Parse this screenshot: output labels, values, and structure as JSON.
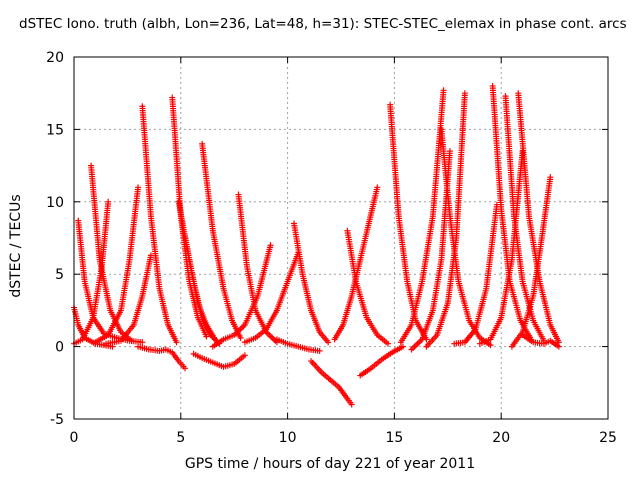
{
  "chart_data": {
    "type": "scatter",
    "title": "dSTEC Iono. truth (albh, Lon=236, Lat=48, h=31): STEC-STEC_elemax in phase cont. arcs",
    "xlabel": "GPS time / hours of day 221 of year 2011",
    "ylabel": "dSTEC  / TECUs",
    "xlim": [
      0,
      25
    ],
    "ylim": [
      -5,
      20
    ],
    "xticks": [
      0,
      5,
      10,
      15,
      20,
      25
    ],
    "yticks": [
      -5,
      0,
      5,
      10,
      15,
      20
    ],
    "grid": true,
    "marker": "plus",
    "color": "#ff0000",
    "arcs": [
      {
        "x": [
          0.0,
          0.2,
          0.5,
          1.0,
          1.4,
          1.8
        ],
        "y": [
          2.7,
          1.5,
          0.6,
          0.2,
          0.1,
          0.0
        ]
      },
      {
        "x": [
          0.2,
          0.5,
          0.9,
          1.4,
          2.0,
          2.6,
          3.2
        ],
        "y": [
          8.7,
          4.5,
          2.0,
          0.9,
          0.6,
          0.4,
          0.3
        ]
      },
      {
        "x": [
          0.0,
          0.4,
          0.9,
          1.3,
          1.6
        ],
        "y": [
          0.2,
          0.5,
          2.0,
          5.5,
          10.0
        ]
      },
      {
        "x": [
          0.8,
          1.2,
          1.7,
          2.2,
          2.7
        ],
        "y": [
          12.5,
          6.0,
          2.5,
          1.0,
          0.4
        ]
      },
      {
        "x": [
          1.0,
          1.6,
          2.2,
          2.6,
          3.0
        ],
        "y": [
          0.3,
          0.8,
          2.5,
          6.0,
          11.0
        ]
      },
      {
        "x": [
          1.5,
          2.2,
          2.8,
          3.2,
          3.6
        ],
        "y": [
          0.2,
          0.4,
          1.5,
          3.5,
          6.3
        ]
      },
      {
        "x": [
          3.2,
          3.6,
          4.0,
          4.4,
          4.8
        ],
        "y": [
          16.6,
          9.0,
          4.0,
          1.5,
          0.3
        ]
      },
      {
        "x": [
          3.0,
          3.5,
          4.0,
          4.3,
          4.6,
          4.9,
          5.2
        ],
        "y": [
          0.0,
          -0.2,
          -0.3,
          -0.2,
          -0.4,
          -1.0,
          -1.5
        ]
      },
      {
        "x": [
          4.6,
          5.0,
          5.4,
          5.8,
          6.2
        ],
        "y": [
          17.2,
          9.0,
          4.5,
          2.0,
          0.7
        ]
      },
      {
        "x": [
          4.9,
          5.4,
          5.8,
          6.2,
          6.6
        ],
        "y": [
          10.0,
          6.0,
          3.0,
          1.5,
          0.5
        ]
      },
      {
        "x": [
          5.2,
          5.6,
          6.0,
          6.4,
          6.8
        ],
        "y": [
          7.5,
          4.5,
          2.0,
          0.8,
          0.2
        ]
      },
      {
        "x": [
          6.0,
          6.5,
          7.0,
          7.4,
          7.8
        ],
        "y": [
          14.0,
          8.0,
          4.0,
          1.8,
          0.6
        ]
      },
      {
        "x": [
          5.6,
          6.0,
          6.5,
          7.0,
          7.5,
          8.0
        ],
        "y": [
          -0.5,
          -0.8,
          -1.1,
          -1.4,
          -1.2,
          -0.6
        ]
      },
      {
        "x": [
          6.5,
          7.0,
          7.5,
          8.0,
          8.6,
          9.2
        ],
        "y": [
          0.0,
          0.5,
          0.8,
          1.5,
          3.5,
          7.0
        ]
      },
      {
        "x": [
          7.7,
          8.1,
          8.5,
          9.0,
          9.5
        ],
        "y": [
          10.5,
          5.5,
          2.5,
          1.0,
          0.3
        ]
      },
      {
        "x": [
          8.0,
          8.5,
          9.0,
          9.5,
          10.0,
          10.5
        ],
        "y": [
          0.3,
          0.6,
          1.2,
          2.5,
          4.5,
          6.5
        ]
      },
      {
        "x": [
          9.5,
          10.0,
          10.5,
          11.0,
          11.5
        ],
        "y": [
          0.5,
          0.2,
          0.0,
          -0.2,
          -0.3
        ]
      },
      {
        "x": [
          10.3,
          10.7,
          11.1,
          11.5,
          11.9
        ],
        "y": [
          8.5,
          5.0,
          2.5,
          1.0,
          0.3
        ]
      },
      {
        "x": [
          11.1,
          11.6,
          12.0,
          12.4,
          12.8,
          13.0
        ],
        "y": [
          -1.0,
          -1.8,
          -2.3,
          -2.8,
          -3.6,
          -4.0
        ]
      },
      {
        "x": [
          12.2,
          12.6,
          13.0,
          13.4,
          13.8,
          14.2
        ],
        "y": [
          0.5,
          1.5,
          3.5,
          6.0,
          8.5,
          11.0
        ]
      },
      {
        "x": [
          12.8,
          13.2,
          13.7,
          14.2,
          14.7
        ],
        "y": [
          8.0,
          4.5,
          2.0,
          0.8,
          0.2
        ]
      },
      {
        "x": [
          13.4,
          13.9,
          14.4,
          14.9,
          15.4
        ],
        "y": [
          -2.0,
          -1.5,
          -0.9,
          -0.4,
          0.0
        ]
      },
      {
        "x": [
          14.8,
          15.2,
          15.6,
          16.0,
          16.5
        ],
        "y": [
          16.7,
          9.0,
          4.5,
          1.8,
          0.5
        ]
      },
      {
        "x": [
          15.3,
          15.8,
          16.3,
          16.8,
          17.3
        ],
        "y": [
          0.3,
          1.5,
          4.5,
          9.0,
          17.7
        ]
      },
      {
        "x": [
          15.8,
          16.3,
          16.8,
          17.2,
          17.6
        ],
        "y": [
          -0.2,
          0.5,
          2.5,
          6.0,
          13.5
        ]
      },
      {
        "x": [
          16.5,
          17.0,
          17.5,
          17.9,
          18.3
        ],
        "y": [
          0.0,
          0.8,
          3.0,
          7.5,
          17.5
        ]
      },
      {
        "x": [
          17.2,
          17.6,
          18.0,
          18.5,
          19.0,
          19.5
        ],
        "y": [
          15.0,
          9.0,
          4.5,
          1.8,
          0.6,
          0.1
        ]
      },
      {
        "x": [
          17.8,
          18.3,
          18.8,
          19.3,
          19.8
        ],
        "y": [
          0.2,
          0.3,
          1.2,
          4.0,
          9.8
        ]
      },
      {
        "x": [
          19.6,
          20.0,
          20.4,
          20.9,
          21.4
        ],
        "y": [
          18.0,
          9.5,
          4.5,
          1.8,
          0.5
        ]
      },
      {
        "x": [
          19.0,
          19.5,
          20.0,
          20.5,
          21.0
        ],
        "y": [
          0.2,
          0.5,
          2.0,
          6.0,
          13.5
        ]
      },
      {
        "x": [
          20.2,
          20.6,
          21.0,
          21.5,
          22.0
        ],
        "y": [
          17.3,
          9.0,
          4.5,
          1.8,
          0.4
        ]
      },
      {
        "x": [
          20.5,
          21.0,
          21.5,
          21.9,
          22.3
        ],
        "y": [
          0.0,
          1.0,
          3.5,
          7.5,
          11.7
        ]
      },
      {
        "x": [
          20.8,
          21.3,
          21.8,
          22.3,
          22.7
        ],
        "y": [
          17.5,
          9.0,
          4.5,
          1.5,
          0.3
        ]
      },
      {
        "x": [
          21.0,
          21.5,
          22.0,
          22.3,
          22.7
        ],
        "y": [
          0.8,
          0.3,
          0.2,
          0.4,
          0.0
        ]
      }
    ]
  }
}
